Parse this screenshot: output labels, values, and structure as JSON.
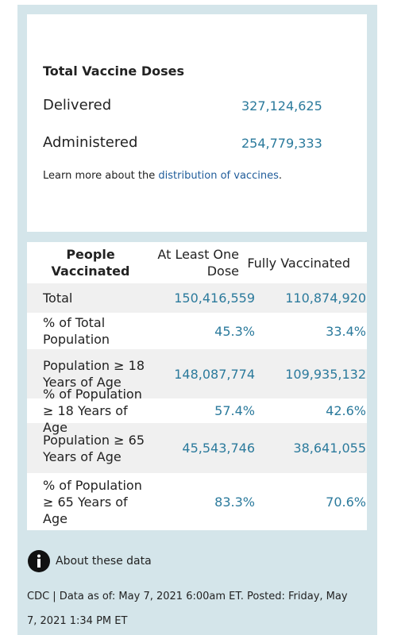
{
  "summary": {
    "title": "Total Vaccine Doses",
    "rows": [
      [
        "Delivered",
        "327,124,625"
      ],
      [
        "Administered",
        "254,779,333"
      ]
    ],
    "note": [
      "Learn more about the ",
      "distribution of vaccines",
      "."
    ]
  },
  "table": {
    "columns": [
      "People Vaccinated",
      "At Least One Dose",
      "Fully Vaccinated"
    ],
    "rows": [
      [
        "Total",
        "150,416,559",
        "110,874,920"
      ],
      [
        "% of Total Population",
        "45.3%",
        "33.4%"
      ],
      [
        "Population ≥ 18 Years of Age",
        "148,087,774",
        "109,935,132"
      ],
      [
        "% of Population ≥ 18 Years of Age",
        "57.4%",
        "42.6%"
      ],
      [
        "Population ≥ 65 Years of Age",
        "45,543,746",
        "38,641,055"
      ],
      [
        "% of Population ≥ 65 Years of Age",
        "83.3%",
        "70.6%"
      ]
    ]
  },
  "footer": {
    "about": "About these data",
    "source": "CDC | Data as of: May 7, 2021 6:00am ET. Posted: Friday, May 7, 2021 1:34 PM ET"
  }
}
